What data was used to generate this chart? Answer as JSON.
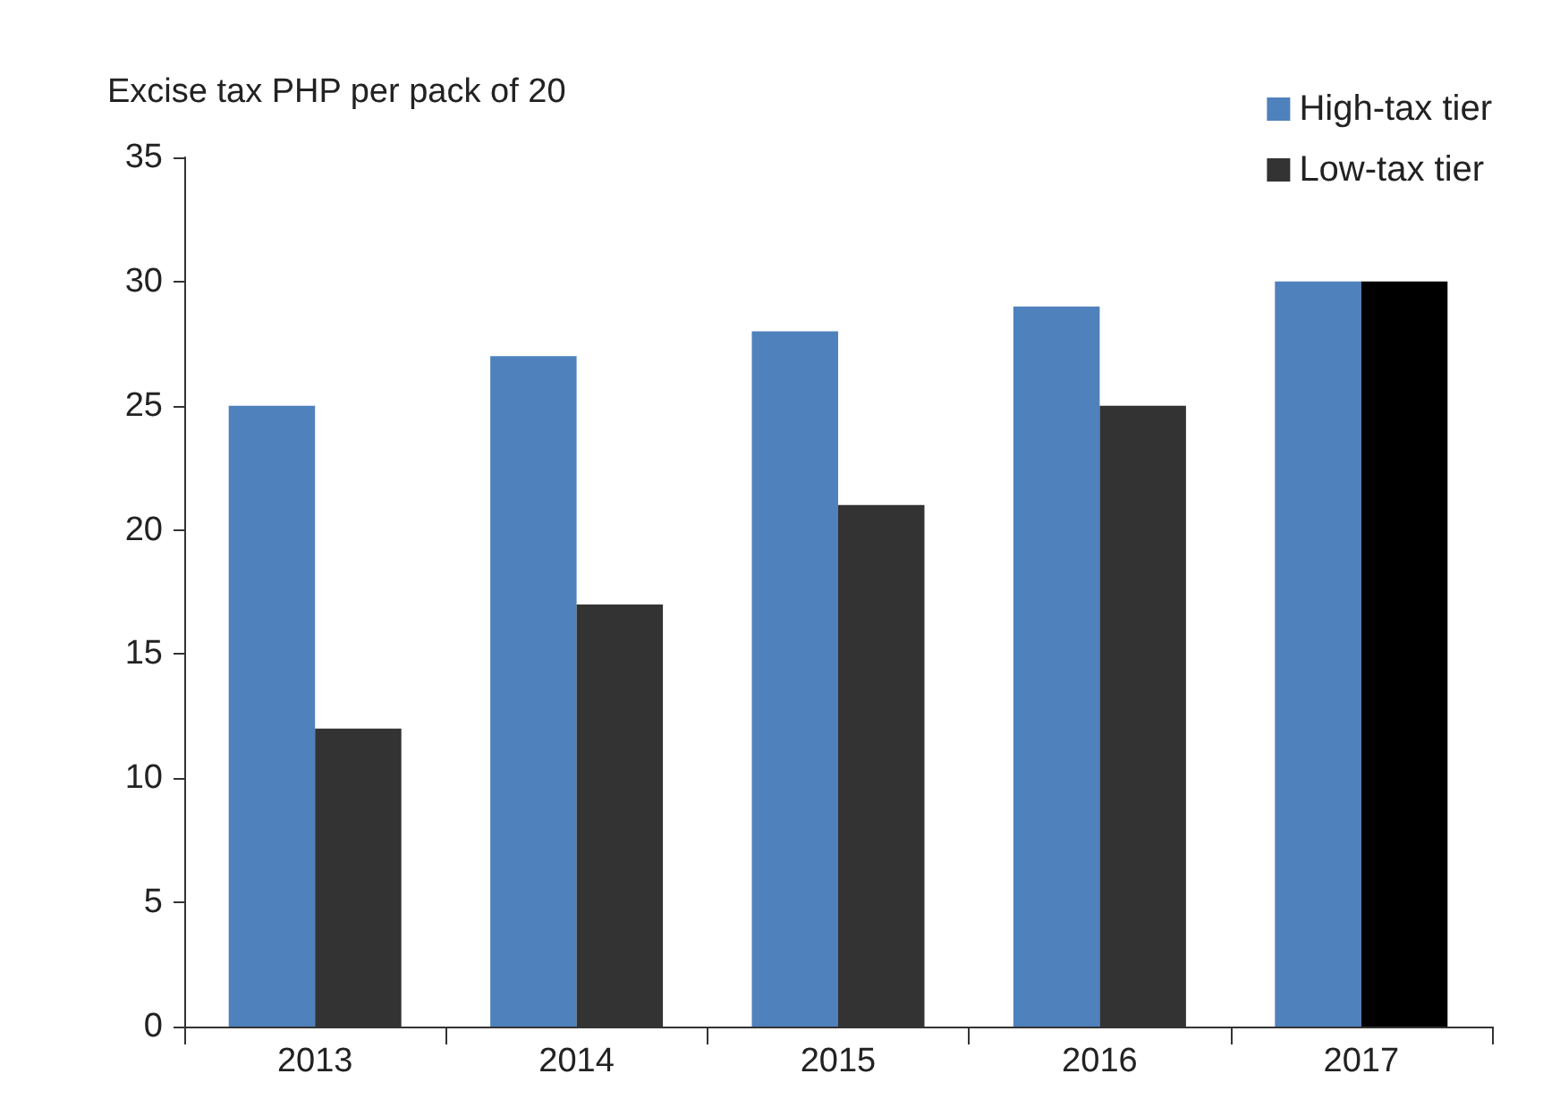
{
  "chart_data": {
    "type": "bar",
    "ylabel": "Excise tax PHP per pack of 20",
    "categories": [
      "2013",
      "2014",
      "2015",
      "2016",
      "2017"
    ],
    "series": [
      {
        "name": "High-tax tier",
        "color": "#4f81bd",
        "values": [
          25,
          27,
          28,
          29,
          30
        ]
      },
      {
        "name": "Low-tax tier",
        "color": "#333333",
        "colors": [
          "#333333",
          "#333333",
          "#333333",
          "#333333",
          "#000000"
        ],
        "values": [
          12,
          17,
          21,
          25,
          30
        ]
      }
    ],
    "ylim": [
      0,
      35
    ],
    "yticks": [
      0,
      5,
      10,
      15,
      20,
      25,
      30,
      35
    ],
    "grid": false,
    "legend": "top right"
  }
}
